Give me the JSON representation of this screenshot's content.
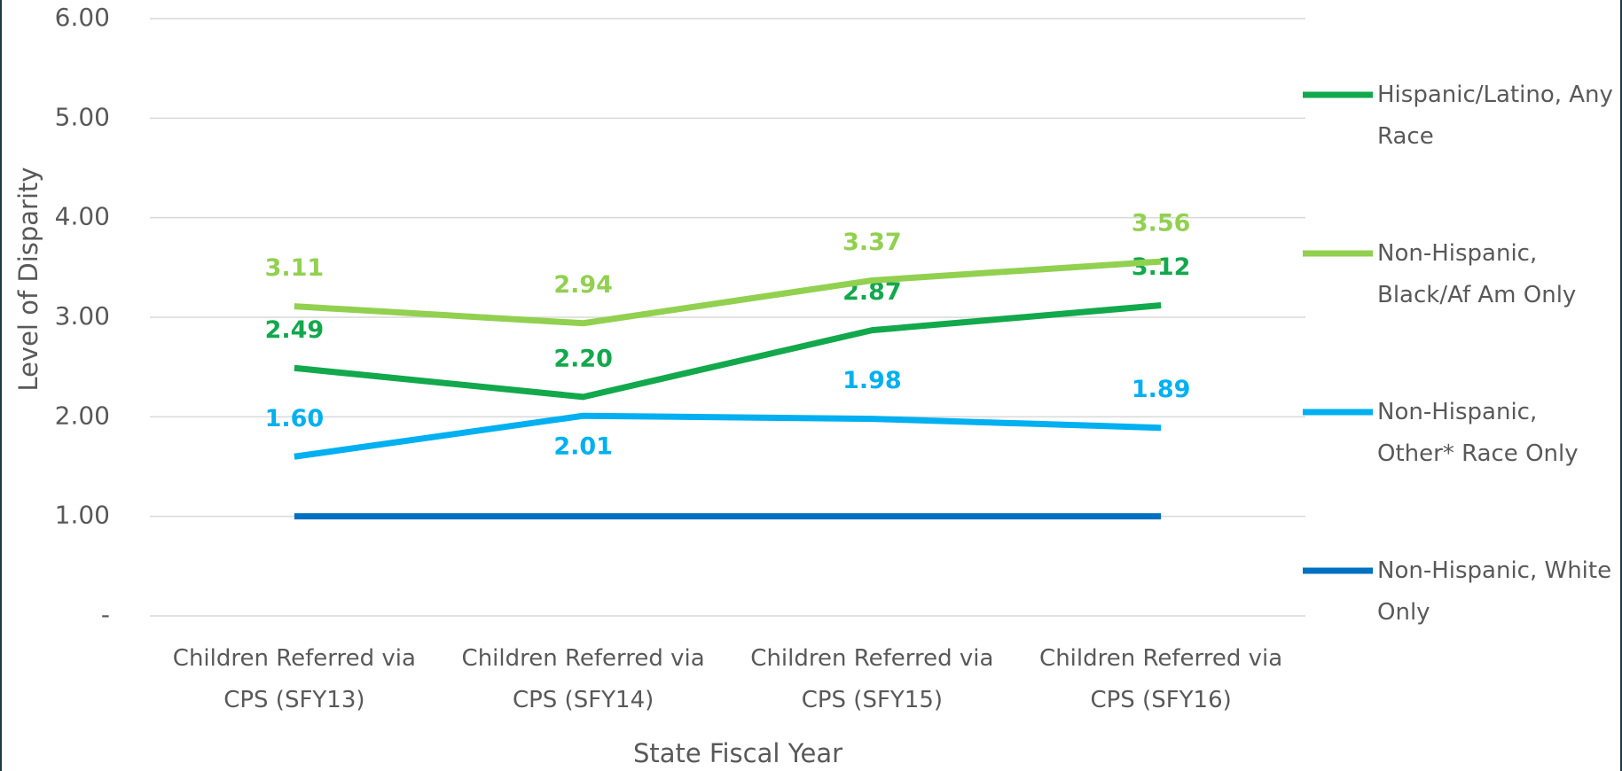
{
  "chart_data": {
    "type": "line",
    "categories": [
      "Children Referred via CPS (SFY13)",
      "Children Referred via CPS (SFY14)",
      "Children Referred via CPS (SFY15)",
      "Children Referred via CPS (SFY16)"
    ],
    "x_label": "State Fiscal Year",
    "y_label": "Level of Disparity",
    "ylim": [
      0,
      6
    ],
    "yticks": [
      {
        "value": 0,
        "label": "-"
      },
      {
        "value": 1,
        "label": "1.00"
      },
      {
        "value": 2,
        "label": "2.00"
      },
      {
        "value": 3,
        "label": "3.00"
      },
      {
        "value": 4,
        "label": "4.00"
      },
      {
        "value": 5,
        "label": "5.00"
      },
      {
        "value": 6,
        "label": "6.00"
      }
    ],
    "grid": true,
    "legend": "right",
    "series": [
      {
        "name": "Hispanic/Latino, Any Race",
        "color": "#12a84c",
        "values": [
          2.49,
          2.2,
          2.87,
          3.12
        ],
        "value_labels": [
          "2.49",
          "2.20",
          "2.87",
          "3.12"
        ]
      },
      {
        "name": "Non-Hispanic, Black/Af Am Only",
        "color": "#92d050",
        "values": [
          3.11,
          2.94,
          3.37,
          3.56
        ],
        "value_labels": [
          "3.11",
          "2.94",
          "3.37",
          "3.56"
        ]
      },
      {
        "name": "Non-Hispanic, Other* Race Only",
        "color": "#00b0f0",
        "values": [
          1.6,
          2.01,
          1.98,
          1.89
        ],
        "value_labels": [
          "1.60",
          "2.01",
          "1.98",
          "1.89"
        ]
      },
      {
        "name": "Non-Hispanic, White Only",
        "color": "#0070c0",
        "values": [
          1,
          1,
          1,
          1
        ]
      }
    ]
  }
}
